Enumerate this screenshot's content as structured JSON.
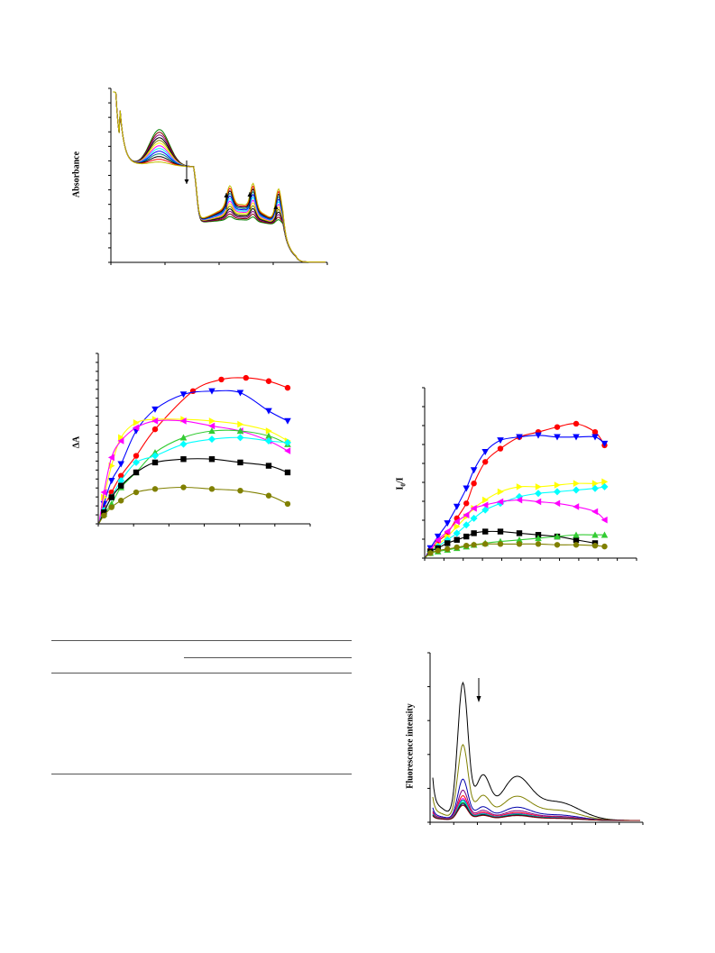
{
  "chart_data": [
    {
      "id": "absorbance",
      "type": "line",
      "ylabel": "Absorbance",
      "xlim": [
        0,
        100
      ],
      "ylim": [
        0,
        1
      ],
      "series_colors": [
        "#008000",
        "#800000",
        "#800080",
        "#000000",
        "#808000",
        "#ffff00",
        "#ff00ff",
        "#00ffff",
        "#0000ff",
        "#008080",
        "#000000",
        "#ff0000",
        "#c0c000"
      ],
      "iso_bands_note_hidden": false
    },
    {
      "id": "deltaA",
      "type": "line",
      "ylabel": "ΔA",
      "xlim": [
        0,
        10
      ],
      "ylim": [
        0,
        10
      ],
      "series": [
        {
          "color": "#ff0000",
          "marker": "circle",
          "x": [
            0.3,
            0.7,
            1.2,
            2,
            3,
            5,
            6.5,
            7.8,
            9,
            10
          ],
          "y": [
            1,
            1.9,
            2.9,
            4.1,
            5.7,
            8,
            8.7,
            8.8,
            8.6,
            8.2
          ]
        },
        {
          "color": "#0000ff",
          "marker": "triangle-down",
          "x": [
            0.3,
            0.7,
            1.2,
            2,
            3,
            4.5,
            6,
            7.5,
            9,
            10
          ],
          "y": [
            1.2,
            2.6,
            3.6,
            5.6,
            6.9,
            7.8,
            8.0,
            7.9,
            6.8,
            6.2
          ]
        },
        {
          "color": "#ffff00",
          "marker": "triangle-right",
          "x": [
            0.3,
            0.7,
            1.2,
            2,
            3,
            4.5,
            6,
            7.5,
            9,
            10
          ],
          "y": [
            1.6,
            3.5,
            5.2,
            6.1,
            6.3,
            6.3,
            6.2,
            6.0,
            5.6,
            5.0
          ]
        },
        {
          "color": "#ff00ff",
          "marker": "triangle-left",
          "x": [
            0.3,
            0.7,
            1.2,
            2,
            3,
            4.5,
            6,
            7.5,
            9,
            10
          ],
          "y": [
            1.9,
            4.0,
            5.0,
            5.8,
            6.2,
            6.2,
            5.9,
            5.6,
            5.0,
            4.4
          ]
        },
        {
          "color": "#33cc33",
          "marker": "triangle-up",
          "x": [
            0.3,
            0.7,
            1.2,
            2,
            3,
            4.5,
            6,
            7.5,
            9,
            10
          ],
          "y": [
            0.6,
            1.2,
            2.2,
            3.1,
            4.3,
            5.2,
            5.6,
            5.6,
            5.3,
            4.8
          ]
        },
        {
          "color": "#00ffff",
          "marker": "diamond",
          "x": [
            0.3,
            0.7,
            1.2,
            2,
            3,
            4.5,
            6,
            7.5,
            9,
            10
          ],
          "y": [
            0.8,
            1.6,
            2.6,
            3.7,
            4.1,
            4.8,
            5.1,
            5.2,
            5.0,
            4.9
          ]
        },
        {
          "color": "#000000",
          "marker": "square",
          "x": [
            0.3,
            0.7,
            1.2,
            2,
            3,
            4.5,
            6,
            7.5,
            9,
            10
          ],
          "y": [
            0.7,
            1.6,
            2.3,
            3.1,
            3.7,
            3.9,
            3.9,
            3.7,
            3.5,
            3.1
          ]
        },
        {
          "color": "#808000",
          "marker": "circle",
          "x": [
            0.3,
            0.7,
            1.2,
            2,
            3,
            4.5,
            6,
            7.5,
            9,
            10
          ],
          "y": [
            0.5,
            1.0,
            1.4,
            1.9,
            2.1,
            2.2,
            2.1,
            2.0,
            1.7,
            1.2
          ]
        }
      ]
    },
    {
      "id": "I0_over_I",
      "type": "line",
      "ylabel": "I0/I",
      "xlim": [
        0,
        10
      ],
      "ylim": [
        0,
        10
      ],
      "series": [
        {
          "color": "#ff0000",
          "marker": "circle",
          "x": [
            0.3,
            0.7,
            1.2,
            1.7,
            2.2,
            2.6,
            3.2,
            4,
            5,
            6,
            7,
            8,
            9,
            9.5
          ],
          "y": [
            0.5,
            1.0,
            1.5,
            2.4,
            3.3,
            4.5,
            5.8,
            6.6,
            7.3,
            7.6,
            7.9,
            8.1,
            7.6,
            6.8
          ]
        },
        {
          "color": "#0000ff",
          "marker": "triangle-down",
          "x": [
            0.3,
            0.7,
            1.2,
            1.7,
            2.2,
            2.6,
            3.2,
            4,
            5,
            6,
            7,
            8,
            9,
            9.5
          ],
          "y": [
            0.6,
            1.3,
            2.1,
            3.1,
            4.2,
            5.3,
            6.4,
            7.1,
            7.3,
            7.4,
            7.3,
            7.3,
            7.3,
            6.9
          ]
        },
        {
          "color": "#ffff00",
          "marker": "triangle-right",
          "x": [
            0.3,
            0.7,
            1.2,
            1.7,
            2.2,
            2.6,
            3.2,
            4,
            5,
            6,
            7,
            8,
            9,
            9.5
          ],
          "y": [
            0.4,
            0.8,
            1.3,
            1.9,
            2.5,
            3.0,
            3.5,
            4.0,
            4.3,
            4.3,
            4.4,
            4.5,
            4.5,
            4.6
          ]
        },
        {
          "color": "#00ffff",
          "marker": "diamond",
          "x": [
            0.3,
            0.7,
            1.2,
            1.7,
            2.2,
            2.6,
            3.2,
            4,
            5,
            6,
            7,
            8,
            9,
            9.5
          ],
          "y": [
            0.4,
            0.7,
            1.1,
            1.5,
            2.0,
            2.4,
            2.9,
            3.3,
            3.7,
            3.9,
            4.0,
            4.1,
            4.2,
            4.3
          ]
        },
        {
          "color": "#ff00ff",
          "marker": "triangle-left",
          "x": [
            0.3,
            0.7,
            1.2,
            1.7,
            2.2,
            2.6,
            3.2,
            4,
            5,
            6,
            7,
            8,
            9,
            9.5
          ],
          "y": [
            0.5,
            1.1,
            1.6,
            2.2,
            2.6,
            3.0,
            3.2,
            3.4,
            3.5,
            3.4,
            3.3,
            3.1,
            2.8,
            2.3
          ]
        },
        {
          "color": "#000000",
          "marker": "square",
          "x": [
            0.3,
            0.7,
            1.2,
            1.7,
            2.2,
            2.6,
            3.2,
            4,
            5,
            6,
            7,
            8,
            9
          ],
          "y": [
            0.4,
            0.6,
            0.9,
            1.1,
            1.3,
            1.5,
            1.6,
            1.6,
            1.5,
            1.4,
            1.3,
            1.1,
            0.9
          ]
        },
        {
          "color": "#33cc33",
          "marker": "triangle-up",
          "x": [
            0.3,
            0.7,
            1.2,
            1.7,
            2.2,
            2.6,
            3.2,
            4,
            5,
            6,
            7,
            8,
            9,
            9.5
          ],
          "y": [
            0.3,
            0.4,
            0.5,
            0.6,
            0.7,
            0.8,
            0.9,
            1.0,
            1.1,
            1.2,
            1.3,
            1.4,
            1.4,
            1.4
          ]
        },
        {
          "color": "#808000",
          "marker": "circle",
          "x": [
            0.3,
            0.7,
            1.2,
            1.7,
            2.2,
            2.6,
            3.2,
            4,
            5,
            6,
            7,
            8,
            9,
            9.5
          ],
          "y": [
            0.3,
            0.45,
            0.55,
            0.65,
            0.75,
            0.8,
            0.85,
            0.85,
            0.85,
            0.85,
            0.8,
            0.8,
            0.75,
            0.7
          ]
        }
      ]
    },
    {
      "id": "fluorescence",
      "type": "line",
      "ylabel": "Fluorescence intensity",
      "xlim": [
        0,
        100
      ],
      "ylim": [
        0,
        100
      ],
      "series": [
        {
          "color": "#000000",
          "scale": 1.0
        },
        {
          "color": "#808000",
          "scale": 0.55
        },
        {
          "color": "#0000aa",
          "scale": 0.3
        },
        {
          "color": "#800080",
          "scale": 0.22
        },
        {
          "color": "#ff0000",
          "scale": 0.18
        },
        {
          "color": "#ff00ff",
          "scale": 0.16
        },
        {
          "color": "#008080",
          "scale": 0.15
        },
        {
          "color": "#00ffff",
          "scale": 0.14
        },
        {
          "color": "#008000",
          "scale": 0.13
        },
        {
          "color": "#000080",
          "scale": 0.12
        },
        {
          "color": "#800000",
          "scale": 0.11
        }
      ]
    }
  ]
}
